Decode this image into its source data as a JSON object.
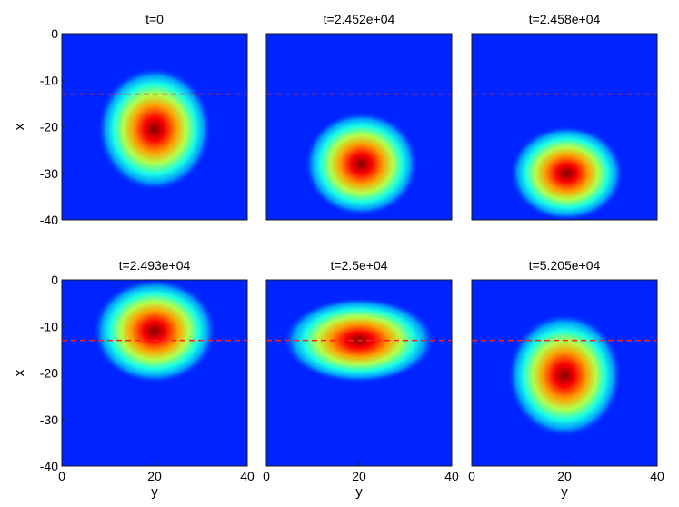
{
  "chart_data": [
    {
      "type": "heatmap",
      "title": "t=0",
      "xlabel": "",
      "ylabel": "x",
      "xlim": [
        0,
        40
      ],
      "ylim": [
        -40,
        0
      ],
      "xticks": [],
      "yticks": [
        "0",
        "-10",
        "-20",
        "-30",
        "-40"
      ],
      "reference_line": {
        "y": -13,
        "color": "#ff2020",
        "style": "dashed"
      },
      "blob": {
        "center_y": 20,
        "center_x": -20.5,
        "spread_y": 6.0,
        "spread_x": 6.5,
        "peak": 1.0
      },
      "colormap": "jet"
    },
    {
      "type": "heatmap",
      "title": "t=2.452e+04",
      "xlabel": "",
      "ylabel": "",
      "xlim": [
        0,
        40
      ],
      "ylim": [
        -40,
        0
      ],
      "xticks": [],
      "yticks": [],
      "reference_line": {
        "y": -13,
        "color": "#ff2020",
        "style": "dashed"
      },
      "blob": {
        "center_y": 20.5,
        "center_x": -28,
        "spread_y": 6.0,
        "spread_x": 5.5,
        "peak": 1.0
      },
      "colormap": "jet"
    },
    {
      "type": "heatmap",
      "title": "t=2.458e+04",
      "xlabel": "",
      "ylabel": "",
      "xlim": [
        0,
        40
      ],
      "ylim": [
        -40,
        0
      ],
      "xticks": [],
      "yticks": [],
      "reference_line": {
        "y": -13,
        "color": "#ff2020",
        "style": "dashed"
      },
      "blob": {
        "center_y": 20.5,
        "center_x": -30,
        "spread_y": 6.0,
        "spread_x": 5.0,
        "peak": 1.0
      },
      "colormap": "jet"
    },
    {
      "type": "heatmap",
      "title": "t=2.493e+04",
      "xlabel": "y",
      "ylabel": "x",
      "xlim": [
        0,
        40
      ],
      "ylim": [
        -40,
        0
      ],
      "xticks": [
        "0",
        "20",
        "40"
      ],
      "yticks": [
        "0",
        "-10",
        "-20",
        "-30",
        "-40"
      ],
      "reference_line": {
        "y": -13,
        "color": "#ff2020",
        "style": "dashed"
      },
      "blob": {
        "center_y": 20,
        "center_x": -11,
        "spread_y": 6.5,
        "spread_x": 5.5,
        "peak": 1.0
      },
      "colormap": "jet"
    },
    {
      "type": "heatmap",
      "title": "t=2.5e+04",
      "xlabel": "y",
      "ylabel": "",
      "xlim": [
        0,
        40
      ],
      "ylim": [
        -40,
        0
      ],
      "xticks": [
        "0",
        "20",
        "40"
      ],
      "yticks": [],
      "reference_line": {
        "y": -13,
        "color": "#ff2020",
        "style": "dashed"
      },
      "blob": {
        "center_y": 20,
        "center_x": -13,
        "spread_y": 8.0,
        "spread_x": 4.5,
        "peak": 1.0
      },
      "colormap": "jet"
    },
    {
      "type": "heatmap",
      "title": "t=5.205e+04",
      "xlabel": "y",
      "ylabel": "",
      "xlim": [
        0,
        40
      ],
      "ylim": [
        -40,
        0
      ],
      "xticks": [
        "0",
        "20",
        "40"
      ],
      "yticks": [],
      "reference_line": {
        "y": -13,
        "color": "#ff2020",
        "style": "dashed"
      },
      "blob": {
        "center_y": 20,
        "center_x": -20.5,
        "spread_y": 6.0,
        "spread_x": 6.5,
        "peak": 1.0
      },
      "colormap": "jet"
    }
  ]
}
